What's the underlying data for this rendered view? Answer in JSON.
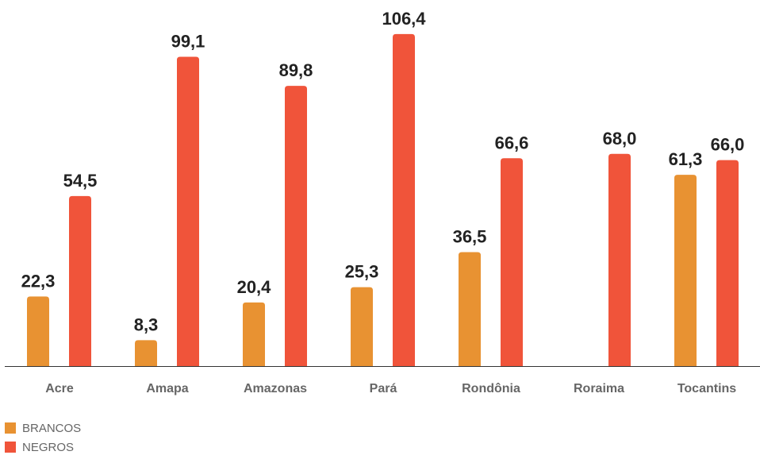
{
  "chart_data": {
    "type": "bar",
    "categories": [
      "Acre",
      "Amapa",
      "Amazonas",
      "Pará",
      "Rondônia",
      "Roraima",
      "Tocantins"
    ],
    "series": [
      {
        "name": "BRANCOS",
        "color": "#E89232",
        "values": [
          22.3,
          8.3,
          20.4,
          25.3,
          36.5,
          null,
          61.3
        ]
      },
      {
        "name": "NEGROS",
        "color": "#F0543A",
        "values": [
          54.5,
          99.1,
          89.8,
          106.4,
          66.6,
          68.0,
          66.0
        ]
      }
    ],
    "value_labels": [
      [
        "22,3",
        "8,3",
        "20,4",
        "25,3",
        "36,5",
        "",
        "61,3"
      ],
      [
        "54,5",
        "99,1",
        "89,8",
        "106,4",
        "66,6",
        "68,0",
        "66,0"
      ]
    ],
    "ylim": [
      0,
      110
    ],
    "grid": false,
    "legend_position": "bottom-left"
  },
  "legend": {
    "items": [
      {
        "label": "BRANCOS",
        "color": "#E89232"
      },
      {
        "label": "NEGROS",
        "color": "#F0543A"
      }
    ]
  }
}
